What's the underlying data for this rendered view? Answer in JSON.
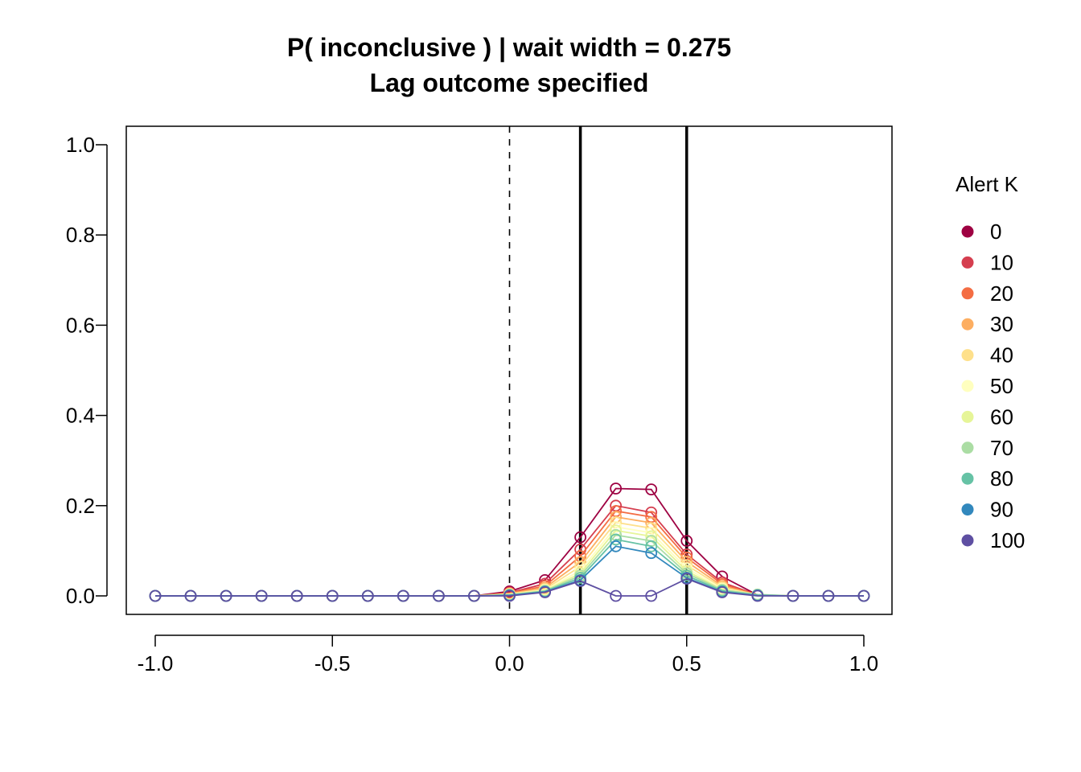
{
  "chart_data": {
    "type": "line",
    "title": "P( inconclusive ) | wait width = 0.275",
    "subtitle": "Lag outcome specified",
    "xlabel": "",
    "ylabel": "",
    "xlim": [
      -1.0,
      1.0
    ],
    "ylim": [
      0.0,
      1.0
    ],
    "x_ticks": [
      "-1.0",
      "-0.5",
      "0.0",
      "0.5",
      "1.0"
    ],
    "y_ticks": [
      "0.0",
      "0.2",
      "0.4",
      "0.6",
      "0.8",
      "1.0"
    ],
    "grid": false,
    "reference_lines": {
      "dashed_vertical": [
        0.0
      ],
      "solid_vertical": [
        0.2,
        0.5
      ]
    },
    "legend": {
      "title": "Alert K",
      "position": "right"
    },
    "x": [
      -1.0,
      -0.9,
      -0.8,
      -0.7,
      -0.6,
      -0.5,
      -0.4,
      -0.3,
      -0.2,
      -0.1,
      0.0,
      0.1,
      0.2,
      0.3,
      0.4,
      0.5,
      0.6,
      0.7,
      0.8,
      0.9,
      1.0
    ],
    "series": [
      {
        "name": "0",
        "color": "#9E0142",
        "values": [
          0,
          0,
          0,
          0,
          0,
          0,
          0,
          0,
          0,
          0,
          0.01,
          0.035,
          0.13,
          0.238,
          0.236,
          0.122,
          0.043,
          0.002,
          0,
          0,
          0
        ]
      },
      {
        "name": "10",
        "color": "#D53E4F",
        "values": [
          0,
          0,
          0,
          0,
          0,
          0,
          0,
          0,
          0,
          0,
          0.007,
          0.027,
          0.103,
          0.2,
          0.185,
          0.092,
          0.03,
          0.002,
          0,
          0,
          0
        ]
      },
      {
        "name": "20",
        "color": "#F46D43",
        "values": [
          0,
          0,
          0,
          0,
          0,
          0,
          0,
          0,
          0,
          0,
          0.006,
          0.022,
          0.088,
          0.188,
          0.175,
          0.085,
          0.026,
          0.002,
          0,
          0,
          0
        ]
      },
      {
        "name": "30",
        "color": "#FDAE61",
        "values": [
          0,
          0,
          0,
          0,
          0,
          0,
          0,
          0,
          0,
          0,
          0.005,
          0.018,
          0.075,
          0.175,
          0.162,
          0.076,
          0.022,
          0.002,
          0,
          0,
          0
        ]
      },
      {
        "name": "40",
        "color": "#FEE08B",
        "values": [
          0,
          0,
          0,
          0,
          0,
          0,
          0,
          0,
          0,
          0,
          0.004,
          0.015,
          0.065,
          0.163,
          0.15,
          0.068,
          0.019,
          0.002,
          0,
          0,
          0
        ]
      },
      {
        "name": "50",
        "color": "#FFFFBF",
        "values": [
          0,
          0,
          0,
          0,
          0,
          0,
          0,
          0,
          0,
          0,
          0.003,
          0.013,
          0.056,
          0.153,
          0.14,
          0.061,
          0.016,
          0.002,
          0,
          0,
          0
        ]
      },
      {
        "name": "60",
        "color": "#E6F598",
        "values": [
          0,
          0,
          0,
          0,
          0,
          0,
          0,
          0,
          0,
          0,
          0.003,
          0.012,
          0.05,
          0.145,
          0.132,
          0.055,
          0.014,
          0.003,
          0,
          0,
          0
        ]
      },
      {
        "name": "70",
        "color": "#ABDDA4",
        "values": [
          0,
          0,
          0,
          0,
          0,
          0,
          0,
          0,
          0,
          0,
          0.002,
          0.011,
          0.045,
          0.135,
          0.122,
          0.05,
          0.013,
          0.003,
          0,
          0,
          0
        ]
      },
      {
        "name": "80",
        "color": "#66C2A5",
        "values": [
          0,
          0,
          0,
          0,
          0,
          0,
          0,
          0,
          0,
          0,
          0.002,
          0.01,
          0.04,
          0.125,
          0.11,
          0.045,
          0.011,
          0.001,
          0,
          0,
          0
        ]
      },
      {
        "name": "90",
        "color": "#3288BD",
        "values": [
          0,
          0,
          0,
          0,
          0,
          0,
          0,
          0,
          0,
          0,
          0.001,
          0.009,
          0.035,
          0.11,
          0.095,
          0.04,
          0.009,
          0.001,
          0,
          0,
          0
        ]
      },
      {
        "name": "100",
        "color": "#5E4FA2",
        "values": [
          0,
          0,
          0,
          0,
          0,
          0,
          0,
          0,
          0,
          0,
          0.0,
          0.008,
          0.033,
          0.0,
          0.0,
          0.038,
          0.008,
          0.0,
          0,
          0,
          0
        ]
      }
    ]
  }
}
